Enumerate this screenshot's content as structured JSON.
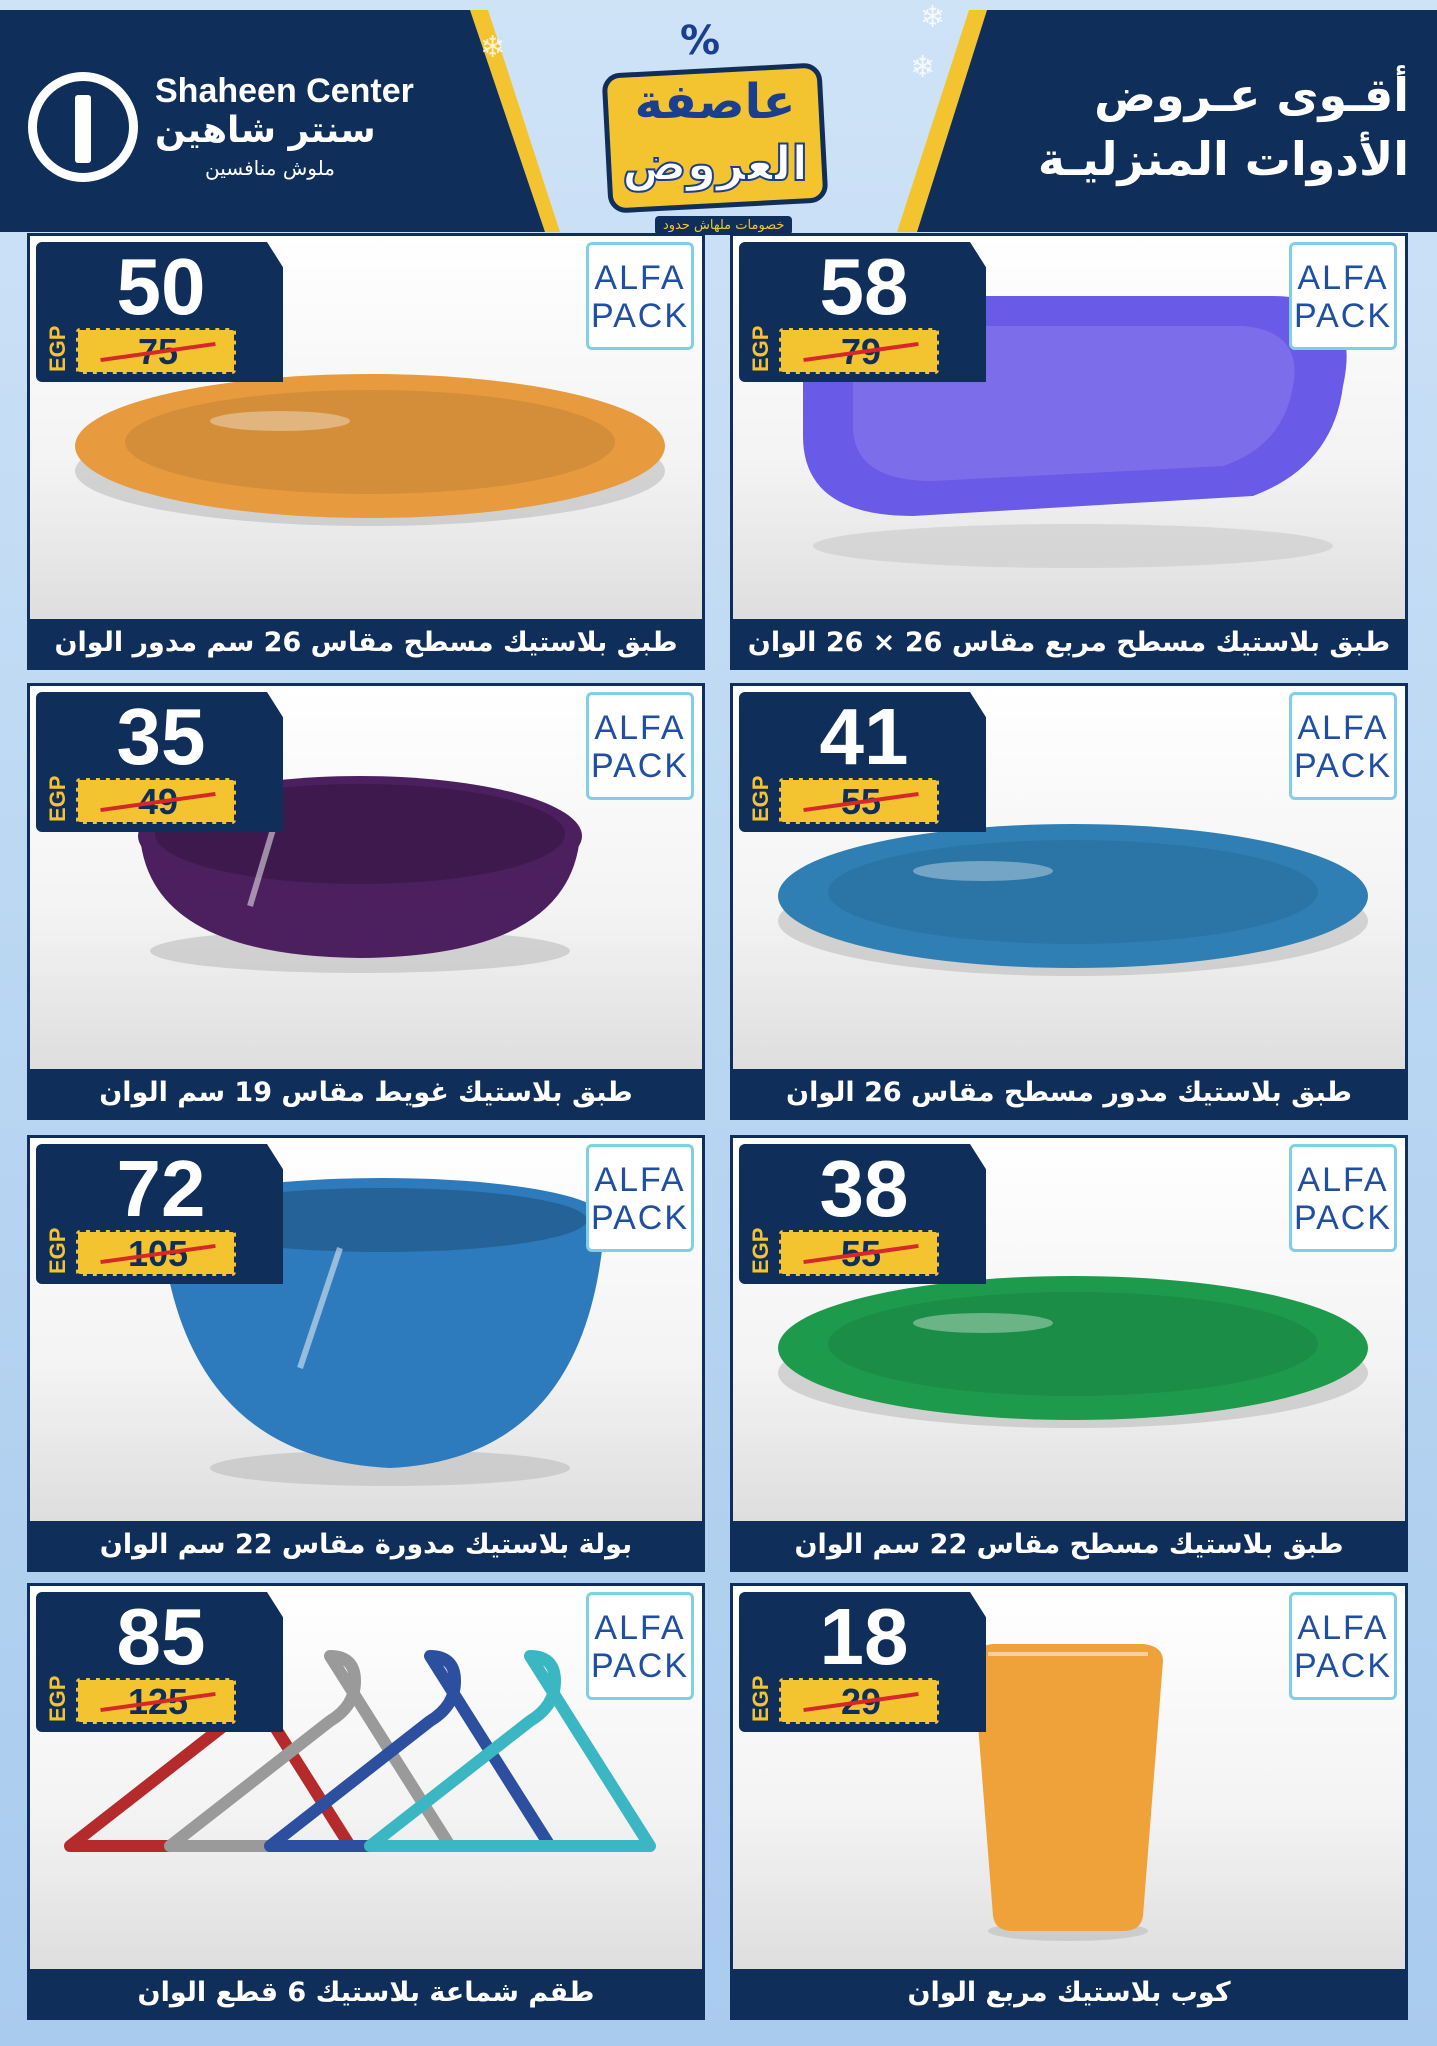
{
  "header": {
    "brand_en": "Shaheen Center",
    "brand_ar": "سنتر شاهين",
    "brand_tagline": "ملوش منافسين",
    "promo_line1": "عاصفة",
    "promo_line2": "العروض",
    "promo_sub": "خصومات ملهاش حدود",
    "promo_symbol": "%",
    "title_line1": "أقـوى عـروض",
    "title_line2": "الأدوات المنزليـة"
  },
  "brand_label": {
    "line1": "ALFA",
    "line2": "PACK"
  },
  "currency": "EGP",
  "products": [
    {
      "price": "58",
      "old_price": "79",
      "name": "طبق بلاستيك مسطح مربع مقاس 26 × 26 الوان",
      "color": "#6a5ae8",
      "shape": "square-plate"
    },
    {
      "price": "50",
      "old_price": "75",
      "name": "طبق بلاستيك مسطح مقاس 26 سم مدور الوان",
      "color": "#e79b3e",
      "shape": "oval-plate"
    },
    {
      "price": "41",
      "old_price": "55",
      "name": "طبق بلاستيك مدور مسطح مقاس 26 الوان",
      "color": "#2f7fb5",
      "shape": "oval-plate"
    },
    {
      "price": "35",
      "old_price": "49",
      "name": "طبق بلاستيك غويط مقاس 19 سم الوان",
      "color": "#4c1f5e",
      "shape": "deep-plate"
    },
    {
      "price": "38",
      "old_price": "55",
      "name": "طبق بلاستيك مسطح مقاس 22 سم الوان",
      "color": "#1e9a4c",
      "shape": "oval-plate"
    },
    {
      "price": "72",
      "old_price": "105",
      "name": "بولة بلاستيك مدورة مقاس 22 سم الوان",
      "color": "#2d7bbd",
      "shape": "bowl"
    },
    {
      "price": "18",
      "old_price": "29",
      "name": "كوب بلاستيك مربع الوان",
      "color": "#f0a23a",
      "shape": "cup"
    },
    {
      "price": "85",
      "old_price": "125",
      "name": "طقم شماعة بلاستيك 6 قطع الوان",
      "color": "#2c4fa0",
      "shape": "hangers"
    }
  ]
}
